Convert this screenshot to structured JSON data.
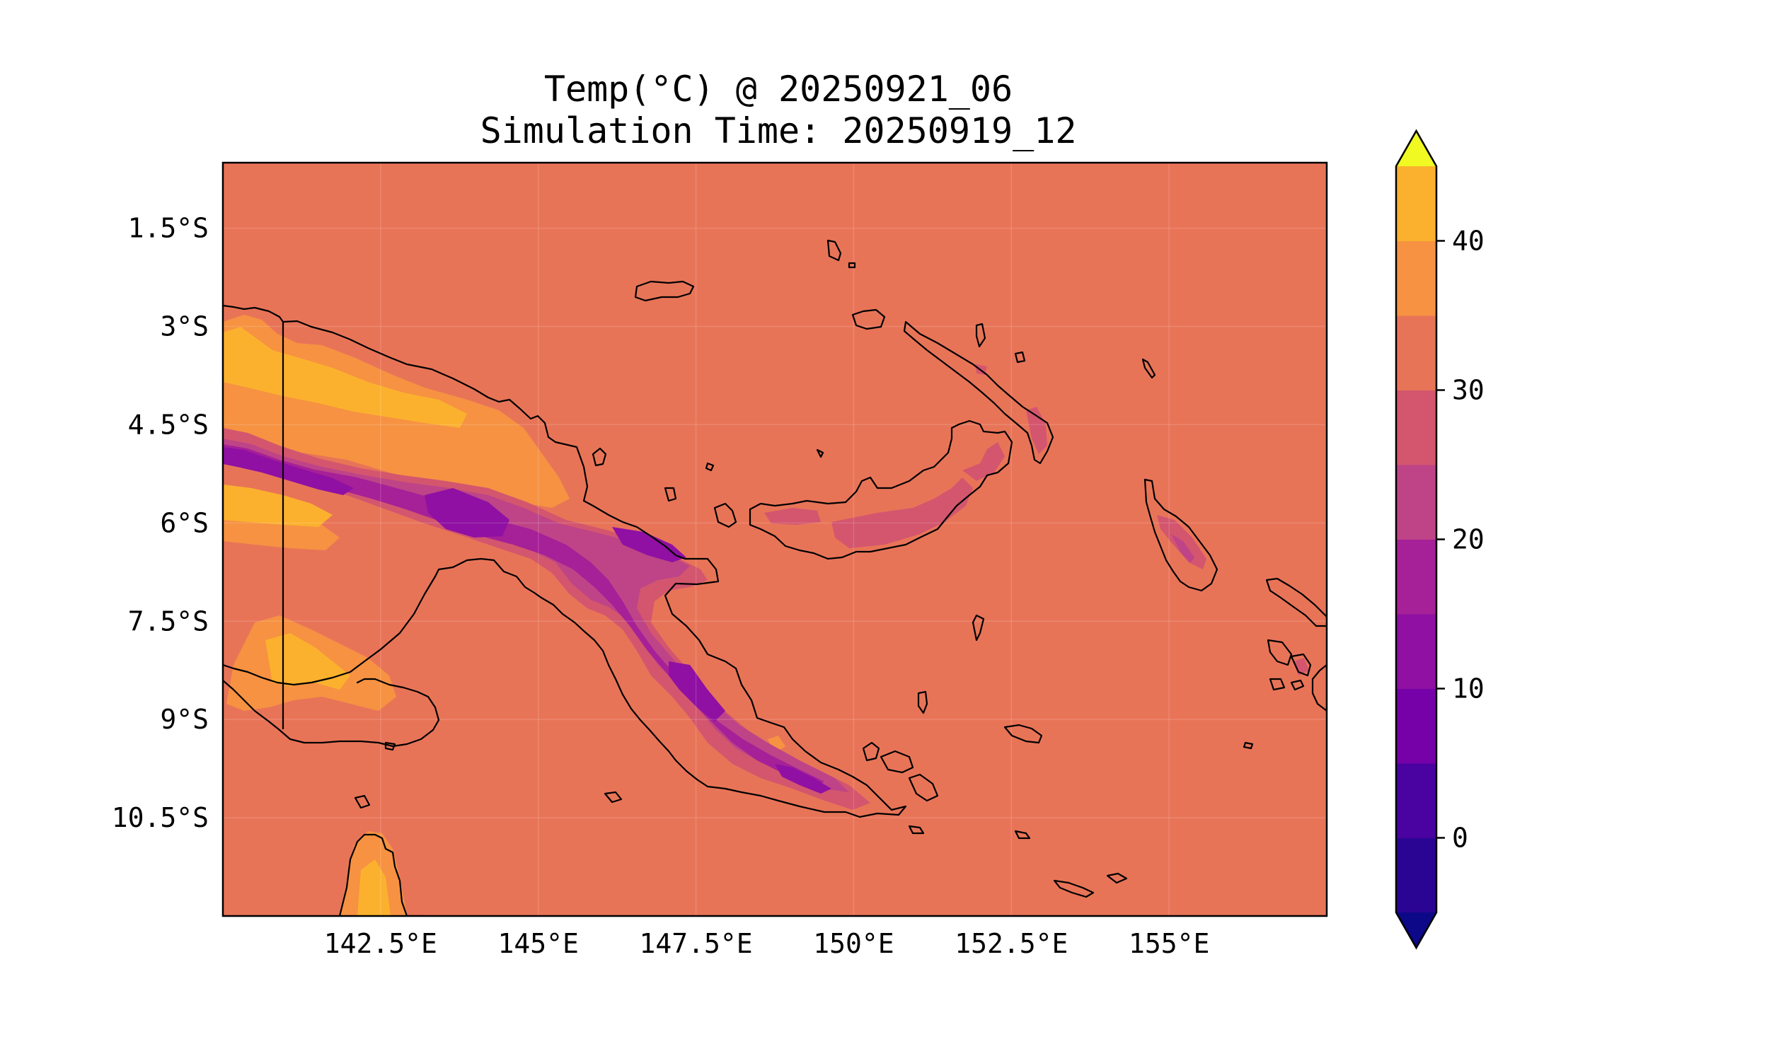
{
  "title": {
    "line1": "Temp(°C) @ 20250921_06",
    "line2": "Simulation Time: 20250919_12"
  },
  "colors": {
    "background_level": "#e87458",
    "warm": "#f69242",
    "hot": "#fbb12e",
    "level_20_25": "#d3566e",
    "level_15_20": "#be4487",
    "level_10_15": "#a62098",
    "level_5_10": "#8f10a3",
    "level_0_5": "#7601a8",
    "level_m5_0": "#4a02a0",
    "under": "#0d0887",
    "over": "#f0f921"
  },
  "map": {
    "lon_range": [
      140.0,
      157.5
    ],
    "lat_range": [
      -12.0,
      -0.5
    ],
    "lon_ticks": [
      {
        "value": 142.5,
        "label": "142.5°E"
      },
      {
        "value": 145.0,
        "label": "145°E"
      },
      {
        "value": 147.5,
        "label": "147.5°E"
      },
      {
        "value": 150.0,
        "label": "150°E"
      },
      {
        "value": 152.5,
        "label": "152.5°E"
      },
      {
        "value": 155.0,
        "label": "155°E"
      }
    ],
    "lat_ticks": [
      {
        "value": -1.5,
        "label": "1.5°S"
      },
      {
        "value": -3.0,
        "label": "3°S"
      },
      {
        "value": -4.5,
        "label": "4.5°S"
      },
      {
        "value": -6.0,
        "label": "6°S"
      },
      {
        "value": -7.5,
        "label": "7.5°S"
      },
      {
        "value": -9.0,
        "label": "9°S"
      },
      {
        "value": -10.5,
        "label": "10.5°S"
      }
    ]
  },
  "colorbar": {
    "levels": [
      -5,
      0,
      5,
      10,
      15,
      20,
      25,
      30,
      35,
      40,
      45
    ],
    "colors": [
      "#2a0593",
      "#4a02a0",
      "#7601a8",
      "#8f10a3",
      "#a62098",
      "#be4487",
      "#d3566e",
      "#e87458",
      "#f69242",
      "#fbb12e",
      "#f0e61f"
    ],
    "under_color": "#0d0887",
    "over_color": "#f0f921",
    "ticks": [
      {
        "value": 0,
        "label": "0"
      },
      {
        "value": 10,
        "label": "10"
      },
      {
        "value": 20,
        "label": "20"
      },
      {
        "value": 30,
        "label": "30"
      },
      {
        "value": 40,
        "label": "40"
      }
    ]
  }
}
